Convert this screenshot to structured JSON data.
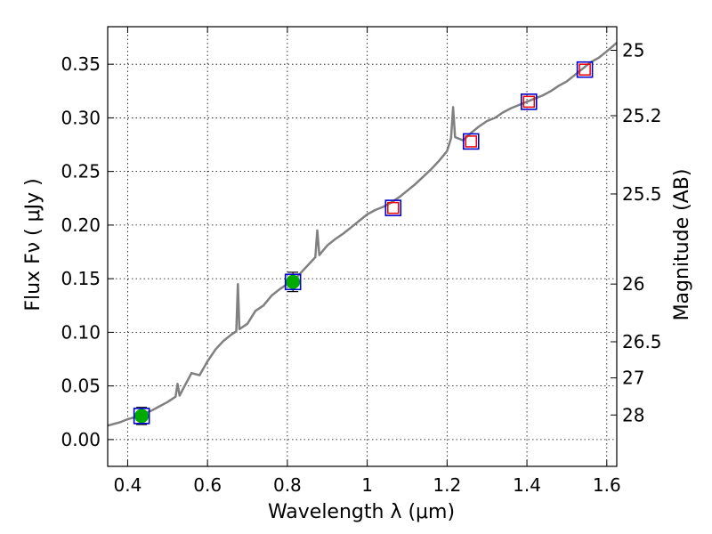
{
  "chart_data": {
    "type": "scatter",
    "xlabel": "Wavelength  λ (μm)",
    "ylabel": "Flux  Fν  ( μJy )",
    "ylabel_right": "Magnitude (AB)",
    "xlim": [
      0.35,
      1.625
    ],
    "ylim": [
      -0.025,
      0.385
    ],
    "grid": true,
    "x_ticks": [
      0.4,
      0.6,
      0.8,
      1.0,
      1.2,
      1.4,
      1.6
    ],
    "x_tick_labels": [
      "0.4",
      "0.6",
      "0.8",
      "1",
      "1.2",
      "1.4",
      "1.6"
    ],
    "y_ticks": [
      0.0,
      0.05,
      0.1,
      0.15,
      0.2,
      0.25,
      0.3,
      0.35
    ],
    "y_tick_labels": [
      "0.00",
      "0.05",
      "0.10",
      "0.15",
      "0.20",
      "0.25",
      "0.30",
      "0.35"
    ],
    "mag_ticks": [
      {
        "flux": 0.363,
        "label": "25"
      },
      {
        "flux": 0.302,
        "label": "25.2"
      },
      {
        "flux": 0.229,
        "label": "25.5"
      },
      {
        "flux": 0.145,
        "label": "26"
      },
      {
        "flux": 0.0912,
        "label": "26.5"
      },
      {
        "flux": 0.0575,
        "label": "27"
      },
      {
        "flux": 0.0229,
        "label": "28"
      }
    ],
    "model_spectrum": {
      "color": "#808080",
      "x": [
        0.35,
        0.38,
        0.4,
        0.42,
        0.44,
        0.46,
        0.48,
        0.5,
        0.52,
        0.525,
        0.53,
        0.54,
        0.56,
        0.58,
        0.6,
        0.62,
        0.64,
        0.66,
        0.672,
        0.676,
        0.68,
        0.7,
        0.72,
        0.74,
        0.76,
        0.78,
        0.8,
        0.82,
        0.84,
        0.86,
        0.87,
        0.875,
        0.88,
        0.9,
        0.92,
        0.94,
        0.96,
        0.98,
        1.0,
        1.02,
        1.04,
        1.06,
        1.08,
        1.1,
        1.12,
        1.14,
        1.16,
        1.18,
        1.2,
        1.21,
        1.215,
        1.22,
        1.24,
        1.26,
        1.28,
        1.3,
        1.32,
        1.34,
        1.36,
        1.38,
        1.4,
        1.42,
        1.44,
        1.46,
        1.48,
        1.5,
        1.52,
        1.54,
        1.56,
        1.58,
        1.6,
        1.625
      ],
      "y": [
        0.013,
        0.016,
        0.019,
        0.021,
        0.024,
        0.027,
        0.031,
        0.035,
        0.04,
        0.052,
        0.041,
        0.048,
        0.062,
        0.06,
        0.073,
        0.084,
        0.092,
        0.098,
        0.101,
        0.145,
        0.103,
        0.108,
        0.12,
        0.125,
        0.134,
        0.14,
        0.145,
        0.15,
        0.158,
        0.166,
        0.17,
        0.195,
        0.172,
        0.181,
        0.187,
        0.192,
        0.198,
        0.204,
        0.21,
        0.214,
        0.217,
        0.221,
        0.226,
        0.232,
        0.238,
        0.245,
        0.252,
        0.26,
        0.269,
        0.281,
        0.31,
        0.282,
        0.279,
        0.286,
        0.292,
        0.297,
        0.3,
        0.305,
        0.309,
        0.312,
        0.315,
        0.318,
        0.321,
        0.325,
        0.33,
        0.334,
        0.34,
        0.346,
        0.352,
        0.356,
        0.362,
        0.37
      ]
    },
    "filled_points": {
      "color": "#00aa00",
      "x": [
        0.435,
        0.814
      ],
      "y": [
        0.022,
        0.147
      ],
      "yerr": [
        0.008,
        0.009
      ]
    },
    "open_squares_blue": {
      "color": "#0000cc",
      "x": [
        0.435,
        0.814,
        1.065,
        1.26,
        1.405,
        1.545
      ],
      "y": [
        0.022,
        0.147,
        0.216,
        0.278,
        0.315,
        0.345
      ]
    },
    "open_squares_red": {
      "color": "#ee0000",
      "x": [
        1.065,
        1.26,
        1.405,
        1.545
      ],
      "y": [
        0.216,
        0.278,
        0.315,
        0.345
      ]
    }
  }
}
